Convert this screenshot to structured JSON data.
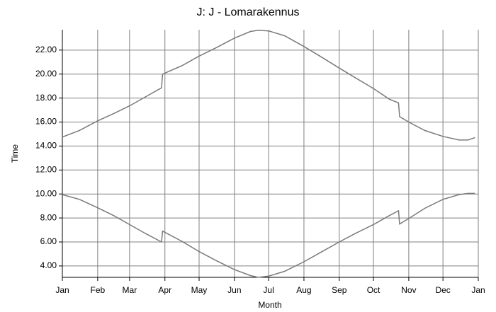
{
  "chart_data": {
    "type": "line",
    "title": "J: J - Lomarakennus",
    "x_label": "Month",
    "y_label": "Time",
    "x": [
      0,
      15,
      31,
      45,
      59,
      73,
      87,
      88,
      105,
      120,
      135,
      151,
      165,
      172,
      181,
      195,
      212,
      226,
      243,
      257,
      273,
      287,
      295,
      296,
      304,
      318,
      334,
      348,
      356,
      362
    ],
    "series": [
      {
        "color": "#7a7a7a",
        "values": [
          14.75,
          15.3,
          16.1,
          16.7,
          17.35,
          18.1,
          18.85,
          20.0,
          20.7,
          21.5,
          22.2,
          23.0,
          23.55,
          23.65,
          23.6,
          23.2,
          22.3,
          21.5,
          20.5,
          19.7,
          18.8,
          17.9,
          17.6,
          16.45,
          16.0,
          15.3,
          14.8,
          14.5,
          14.5,
          14.7
        ]
      },
      {
        "color": "#7a7a7a",
        "values": [
          9.95,
          9.55,
          8.85,
          8.2,
          7.45,
          6.7,
          6.0,
          6.9,
          6.05,
          5.2,
          4.45,
          3.7,
          3.2,
          3.05,
          3.15,
          3.55,
          4.35,
          5.1,
          6.0,
          6.7,
          7.45,
          8.2,
          8.6,
          7.5,
          7.95,
          8.8,
          9.55,
          9.95,
          10.05,
          10.05
        ]
      }
    ],
    "xlim": [
      0,
      365
    ],
    "xticks": [
      {
        "value": 0,
        "label": "Jan"
      },
      {
        "value": 31,
        "label": "Feb"
      },
      {
        "value": 59,
        "label": "Mar"
      },
      {
        "value": 90,
        "label": "Apr"
      },
      {
        "value": 120,
        "label": "May"
      },
      {
        "value": 151,
        "label": "Jun"
      },
      {
        "value": 181,
        "label": "Jul"
      },
      {
        "value": 212,
        "label": "Aug"
      },
      {
        "value": 243,
        "label": "Sep"
      },
      {
        "value": 273,
        "label": "Oct"
      },
      {
        "value": 304,
        "label": "Nov"
      },
      {
        "value": 334,
        "label": "Dec"
      },
      {
        "value": 365,
        "label": "Jan"
      }
    ],
    "ylim": [
      3.05,
      23.7
    ],
    "yticks": [
      {
        "value": 4,
        "label": "4.00"
      },
      {
        "value": 6,
        "label": "6.00"
      },
      {
        "value": 8,
        "label": "8.00"
      },
      {
        "value": 10,
        "label": "10.00"
      },
      {
        "value": 12,
        "label": "12.00"
      },
      {
        "value": 14,
        "label": "14.00"
      },
      {
        "value": 16,
        "label": "16.00"
      },
      {
        "value": 18,
        "label": "18.00"
      },
      {
        "value": 20,
        "label": "20.00"
      },
      {
        "value": 22,
        "label": "22.00"
      }
    ],
    "grid": true
  }
}
